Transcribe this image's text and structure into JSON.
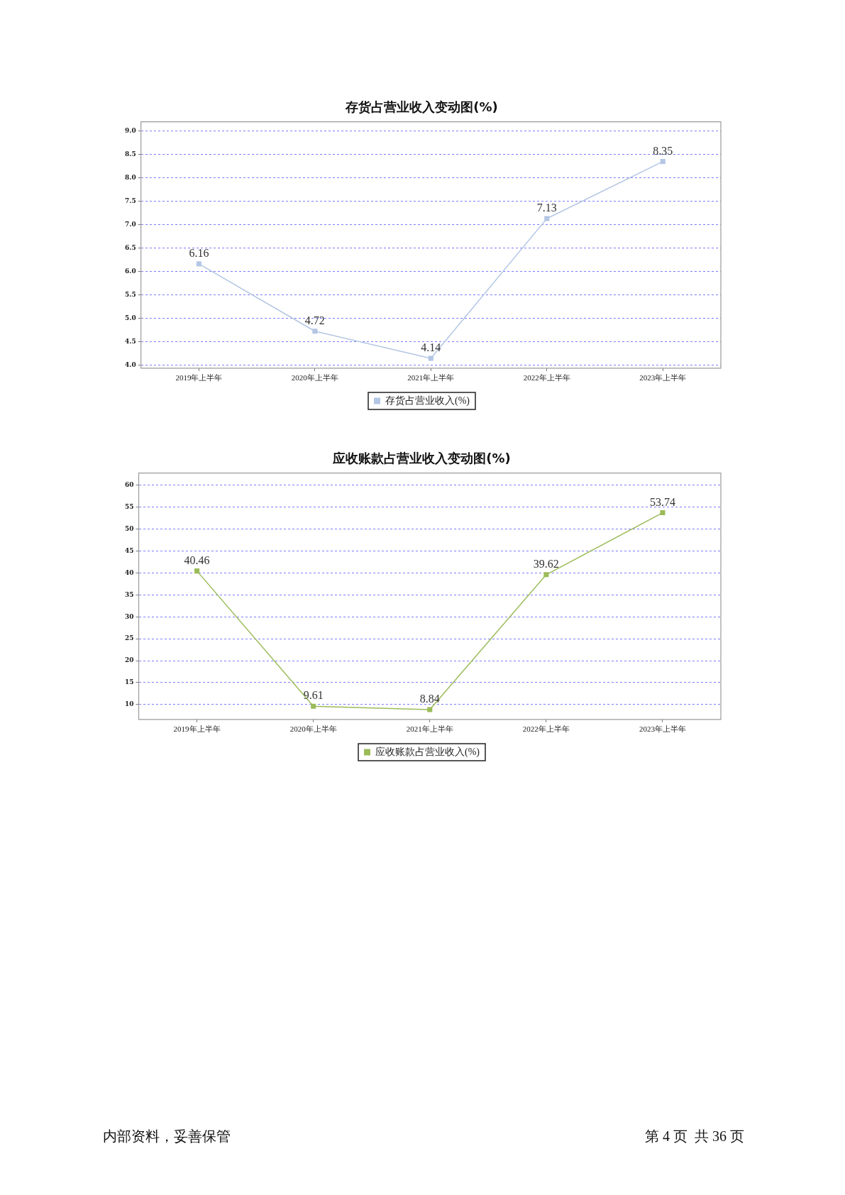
{
  "chart_data": [
    {
      "type": "line",
      "title": "存货占营业收入变动图(%)",
      "categories": [
        "2019年上半年",
        "2020年上半年",
        "2021年上半年",
        "2022年上半年",
        "2023年上半年"
      ],
      "series": [
        {
          "name": "存货占营业收入(%)",
          "color": "#b3c6e4",
          "values": [
            6.16,
            4.72,
            4.14,
            7.13,
            8.35
          ]
        }
      ],
      "ylim": [
        3.93,
        9.2
      ],
      "yticks": [
        {
          "value": 4,
          "label": "4.0"
        },
        4.5,
        {
          "value": 5,
          "label": "5.0"
        },
        5.5,
        {
          "value": 6,
          "label": "6.0"
        },
        6.5,
        {
          "value": 7,
          "label": "7.0"
        },
        7.5,
        {
          "value": 8,
          "label": "8.0"
        },
        8.5,
        {
          "value": 9,
          "label": "9.0"
        }
      ],
      "grid": "y",
      "legend": "bottom",
      "marker": "square",
      "line_style": "solid",
      "data_labels": true
    },
    {
      "type": "line",
      "title": "应收账款占营业收入变动图(%)",
      "categories": [
        "2019年上半年",
        "2020年上半年",
        "2021年上半年",
        "2022年上半年",
        "2023年上半年"
      ],
      "series": [
        {
          "name": "应收账款占营业收入(%)",
          "color": "#9bbb59",
          "values": [
            40.46,
            9.61,
            8.84,
            39.62,
            53.74
          ]
        }
      ],
      "ylim": [
        6.6,
        62.8
      ],
      "yticks": [
        10,
        15,
        20,
        25,
        30,
        35,
        40,
        45,
        50,
        55,
        60
      ],
      "grid": "y",
      "legend": "bottom",
      "marker": "square",
      "line_style": "solid",
      "data_labels": true,
      "annotations": [
        "内部资料，妥善保管",
        "第 4 页  共 36 页"
      ]
    }
  ]
}
